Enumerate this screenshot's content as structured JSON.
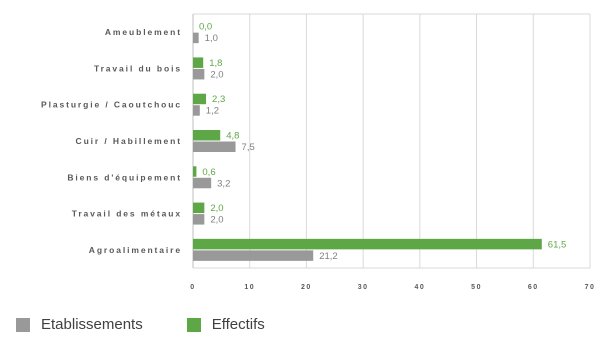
{
  "chart_data": {
    "type": "bar",
    "orientation": "horizontal",
    "categories": [
      "Ameublement",
      "Travail du bois",
      "Plasturgie / Caoutchouc",
      "Cuir / Habillement",
      "Biens d'équipement",
      "Travail des métaux",
      "Agroalimentaire"
    ],
    "series": [
      {
        "name": "Effectifs",
        "color": "#5ea746",
        "values": [
          0.0,
          1.8,
          2.3,
          4.8,
          0.6,
          2.0,
          61.5
        ],
        "labels": [
          "0,0",
          "1,8",
          "2,3",
          "4,8",
          "0,6",
          "2,0",
          "61,5"
        ]
      },
      {
        "name": "Etablissements",
        "color": "#999999",
        "values": [
          1.0,
          2.0,
          1.2,
          7.5,
          3.2,
          2.0,
          21.2
        ],
        "labels": [
          "1,0",
          "2,0",
          "1,2",
          "7,5",
          "3,2",
          "2,0",
          "21,2"
        ]
      }
    ],
    "xlim": [
      0,
      70
    ],
    "xticks": [
      0,
      10,
      20,
      30,
      40,
      50,
      60,
      70
    ],
    "grid": true,
    "legend_position": "bottom-left",
    "legend_order": [
      "Etablissements",
      "Effectifs"
    ]
  }
}
